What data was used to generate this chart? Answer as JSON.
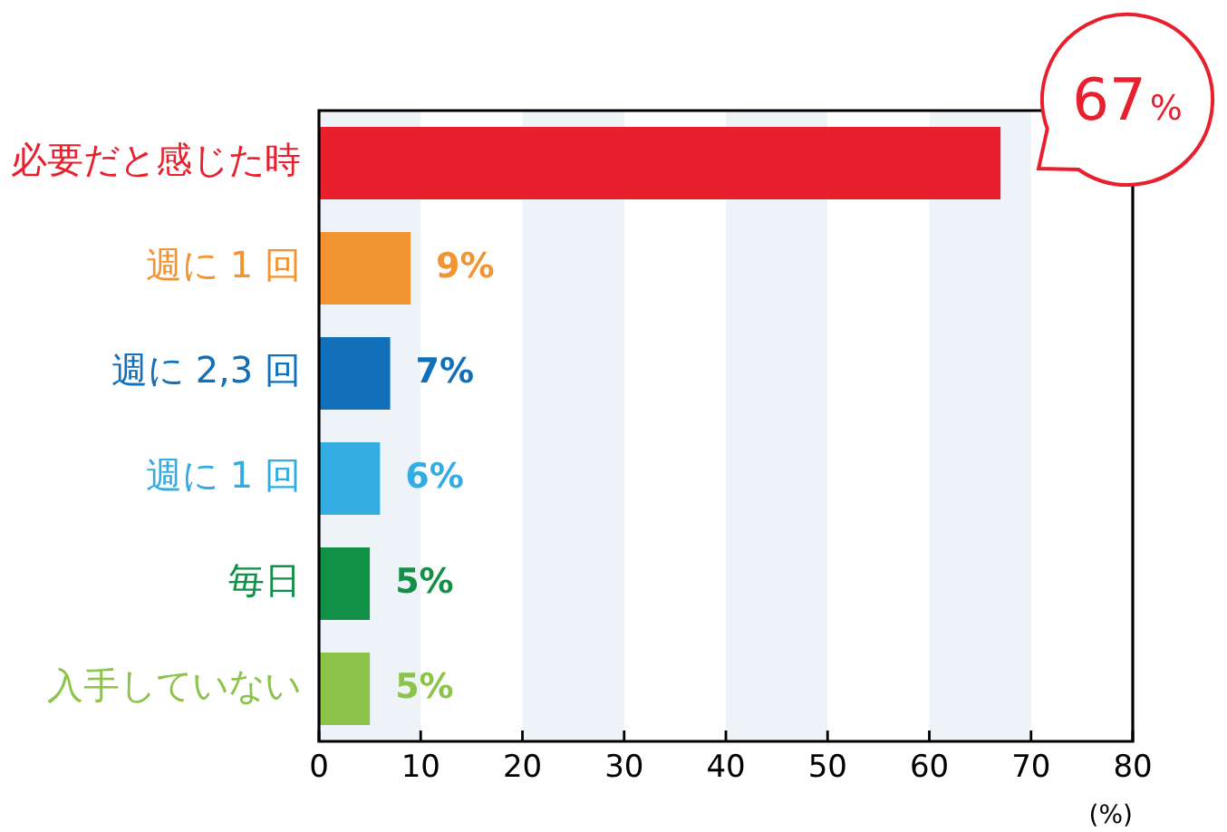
{
  "chart_data": {
    "type": "bar",
    "orientation": "horizontal",
    "categories": [
      "必要だと感じた時",
      "週に 1 回",
      "週に 2,3 回",
      "週に 1 回",
      "毎日",
      "入手していない"
    ],
    "values": [
      67,
      9,
      7,
      6,
      5,
      5
    ],
    "colors": [
      "#e8202e",
      "#f39433",
      "#1170b9",
      "#33ade1",
      "#139047",
      "#8cc34a"
    ],
    "value_labels": [
      "67%",
      "9%",
      "7%",
      "6%",
      "5%",
      "5%"
    ],
    "xlim": [
      0,
      80
    ],
    "xticks": [
      0,
      10,
      20,
      30,
      40,
      50,
      60,
      70,
      80
    ],
    "xlabel": "(%)",
    "bands": [
      {
        "axis": "x",
        "from": 0,
        "to": 10,
        "color": "#eef3f7"
      },
      {
        "axis": "x",
        "from": 20,
        "to": 30,
        "color": "#eef3f7"
      },
      {
        "axis": "x",
        "from": 40,
        "to": 50,
        "color": "#eef3f7"
      },
      {
        "axis": "x",
        "from": 60,
        "to": 70,
        "color": "#eef3f7"
      }
    ],
    "grid": false,
    "legend": false
  }
}
